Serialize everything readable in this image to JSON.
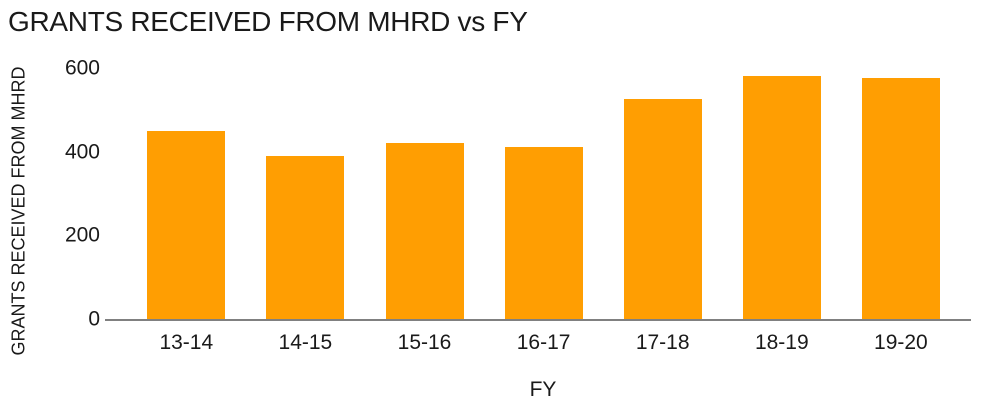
{
  "chart_data": {
    "type": "bar",
    "title": "GRANTS RECEIVED FROM MHRD vs FY",
    "xlabel": "FY",
    "ylabel": "GRANTS RECEIVED FROM MHRD",
    "categories": [
      "13-14",
      "14-15",
      "15-16",
      "16-17",
      "17-18",
      "18-19",
      "19-20"
    ],
    "values": [
      450,
      390,
      420,
      410,
      525,
      580,
      575
    ],
    "yticks": [
      0,
      200,
      400,
      600
    ],
    "ylim": [
      0,
      600
    ],
    "grid": false,
    "legend": false,
    "colors": {
      "bar": "#FF9E02",
      "axis_line": "#808080",
      "text": "#1A1A1A",
      "background": "#FFFFFF"
    }
  }
}
